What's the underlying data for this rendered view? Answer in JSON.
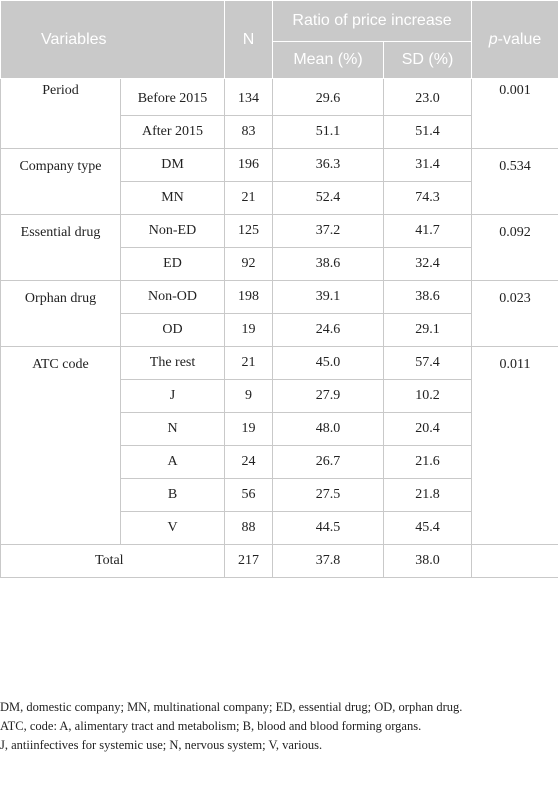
{
  "header": {
    "variables": "Variables",
    "n": "N",
    "ratio": "Ratio of price increase",
    "p_italic": "p",
    "p_rest": "-value",
    "mean": "Mean (%)",
    "sd": "SD (%)"
  },
  "groups": [
    {
      "name": "Period",
      "p": "0.001",
      "rows": [
        {
          "cat": "Before 2015",
          "n": "134",
          "mean": "29.6",
          "sd": "23.0"
        },
        {
          "cat": "After 2015",
          "n": "83",
          "mean": "51.1",
          "sd": "51.4"
        }
      ]
    },
    {
      "name": "Company type",
      "p": "0.534",
      "rows": [
        {
          "cat": "DM",
          "n": "196",
          "mean": "36.3",
          "sd": "31.4"
        },
        {
          "cat": "MN",
          "n": "21",
          "mean": "52.4",
          "sd": "74.3"
        }
      ]
    },
    {
      "name": "Essential drug",
      "p": "0.092",
      "rows": [
        {
          "cat": "Non-ED",
          "n": "125",
          "mean": "37.2",
          "sd": "41.7"
        },
        {
          "cat": "ED",
          "n": "92",
          "mean": "38.6",
          "sd": "32.4"
        }
      ]
    },
    {
      "name": "Orphan drug",
      "p": "0.023",
      "rows": [
        {
          "cat": "Non-OD",
          "n": "198",
          "mean": "39.1",
          "sd": "38.6"
        },
        {
          "cat": "OD",
          "n": "19",
          "mean": "24.6",
          "sd": "29.1"
        }
      ]
    },
    {
      "name": "ATC code",
      "p": "0.011",
      "rows": [
        {
          "cat": "The rest",
          "n": "21",
          "mean": "45.0",
          "sd": "57.4"
        },
        {
          "cat": "J",
          "n": "9",
          "mean": "27.9",
          "sd": "10.2"
        },
        {
          "cat": "N",
          "n": "19",
          "mean": "48.0",
          "sd": "20.4"
        },
        {
          "cat": "A",
          "n": "24",
          "mean": "26.7",
          "sd": "21.6"
        },
        {
          "cat": "B",
          "n": "56",
          "mean": "27.5",
          "sd": "21.8"
        },
        {
          "cat": "V",
          "n": "88",
          "mean": "44.5",
          "sd": "45.4"
        }
      ]
    }
  ],
  "total": {
    "label": "Total",
    "n": "217",
    "mean": "37.8",
    "sd": "38.0"
  },
  "notes": [
    "DM, domestic company; MN, multinational company; ED, essential drug; OD, orphan drug.",
    "ATC, code: A, alimentary tract and metabolism; B, blood and blood forming organs.",
    "J, antiinfectives for systemic use; N, nervous system; V, various."
  ],
  "colors": {
    "header_bg": "#c9c9c9",
    "header_text": "#ffffff",
    "grid": "#c9c9c9"
  }
}
